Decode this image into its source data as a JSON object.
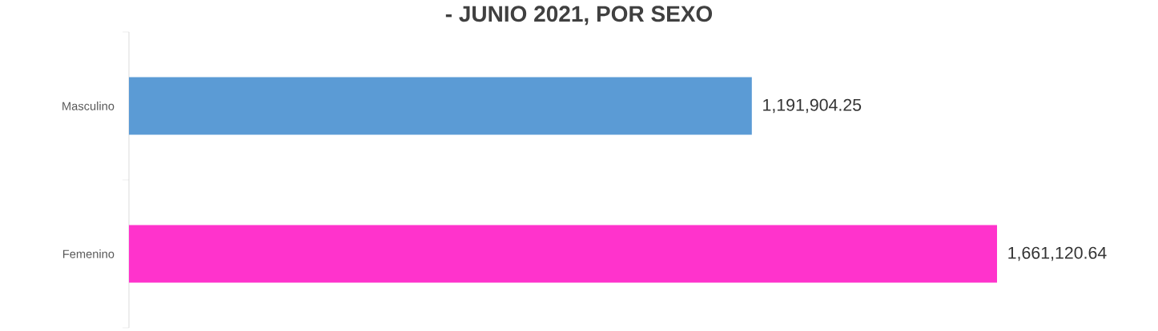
{
  "chart_data": {
    "type": "bar",
    "orientation": "horizontal",
    "title": "- JUNIO 2021, POR SEXO",
    "categories": [
      "Masculino",
      "Femenino"
    ],
    "values": [
      1191904.25,
      1661120.64
    ],
    "colors": [
      "#5b9bd5",
      "#ff33cc"
    ],
    "value_labels": [
      "1,191,904.25",
      "1,661,120.64"
    ]
  }
}
